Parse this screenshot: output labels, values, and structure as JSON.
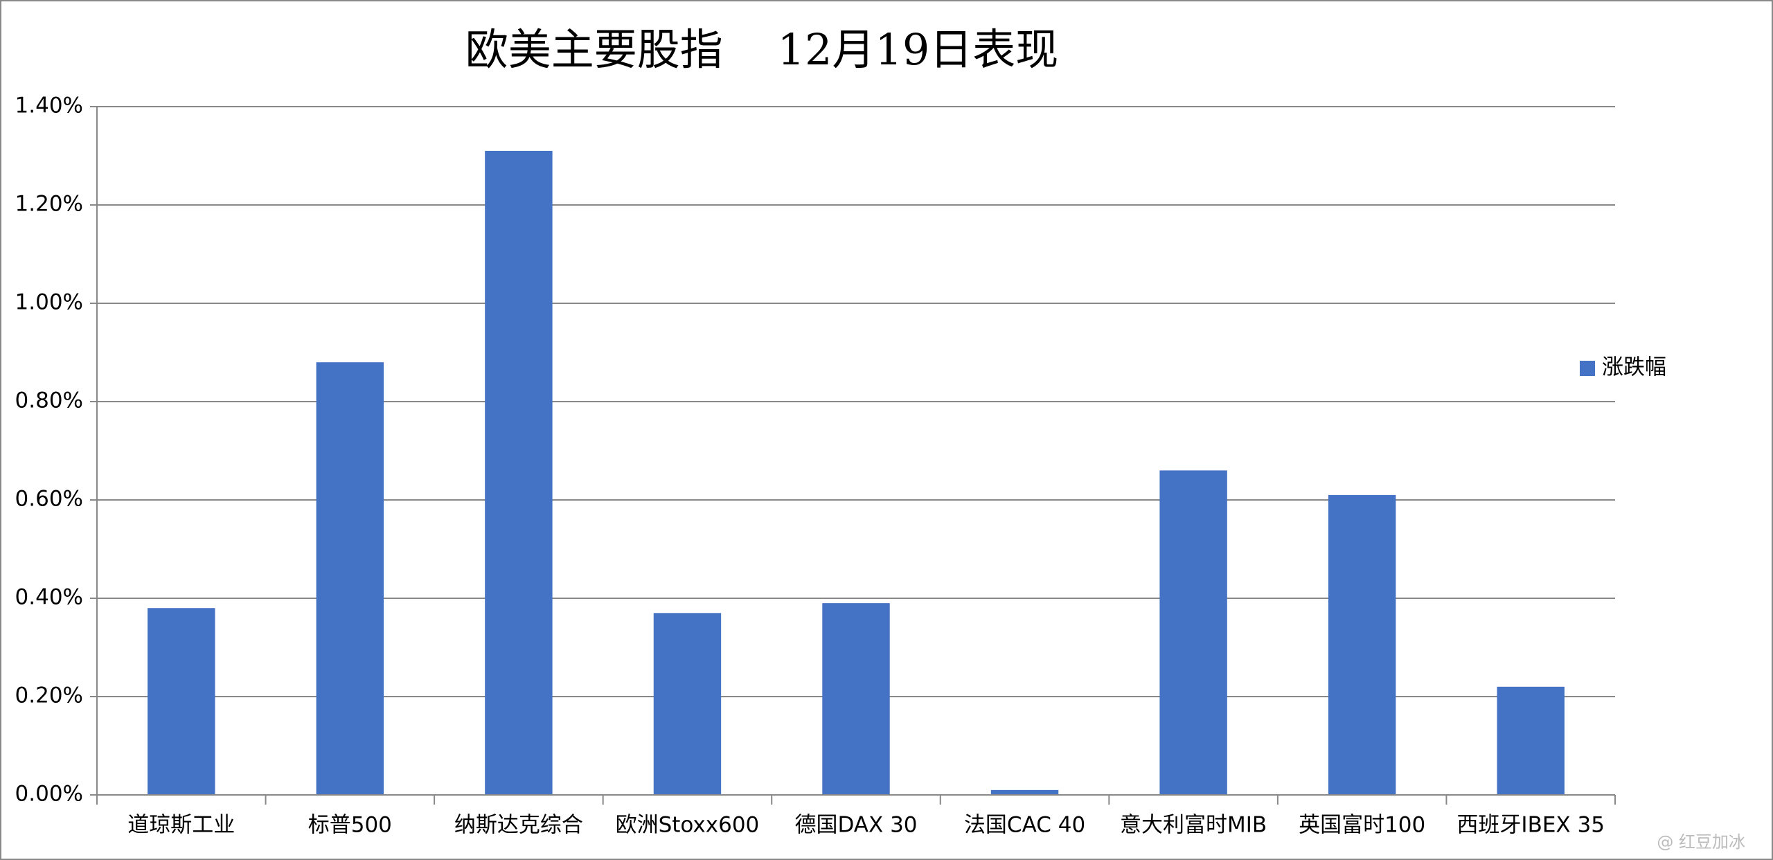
{
  "chart_data": {
    "type": "bar",
    "title": "欧美主要股指    12月19日表现",
    "categories": [
      "道琼斯工业",
      "标普500",
      "纳斯达克综合",
      "欧洲Stoxx600",
      "德国DAX 30",
      "法国CAC 40",
      "意大利富时MIB",
      "英国富时100",
      "西班牙IBEX 35"
    ],
    "series": [
      {
        "name": "涨跌幅",
        "color": "#4472c4",
        "values": [
          0.38,
          0.88,
          1.31,
          0.37,
          0.39,
          0.01,
          0.66,
          0.61,
          0.22
        ]
      }
    ],
    "ylim": [
      0,
      1.4
    ],
    "yticks": [
      {
        "value": 0,
        "label": "0.00%"
      },
      {
        "value": 0.2,
        "label": "0.20%"
      },
      {
        "value": 0.4,
        "label": "0.40%"
      },
      {
        "value": 0.6,
        "label": "0.60%"
      },
      {
        "value": 0.8,
        "label": "0.80%"
      },
      {
        "value": 1.0,
        "label": "1.00%"
      },
      {
        "value": 1.2,
        "label": "1.20%"
      },
      {
        "value": 1.4,
        "label": "1.40%"
      }
    ],
    "grid": true,
    "legend": "right",
    "watermark": "@ 红豆加冰"
  }
}
